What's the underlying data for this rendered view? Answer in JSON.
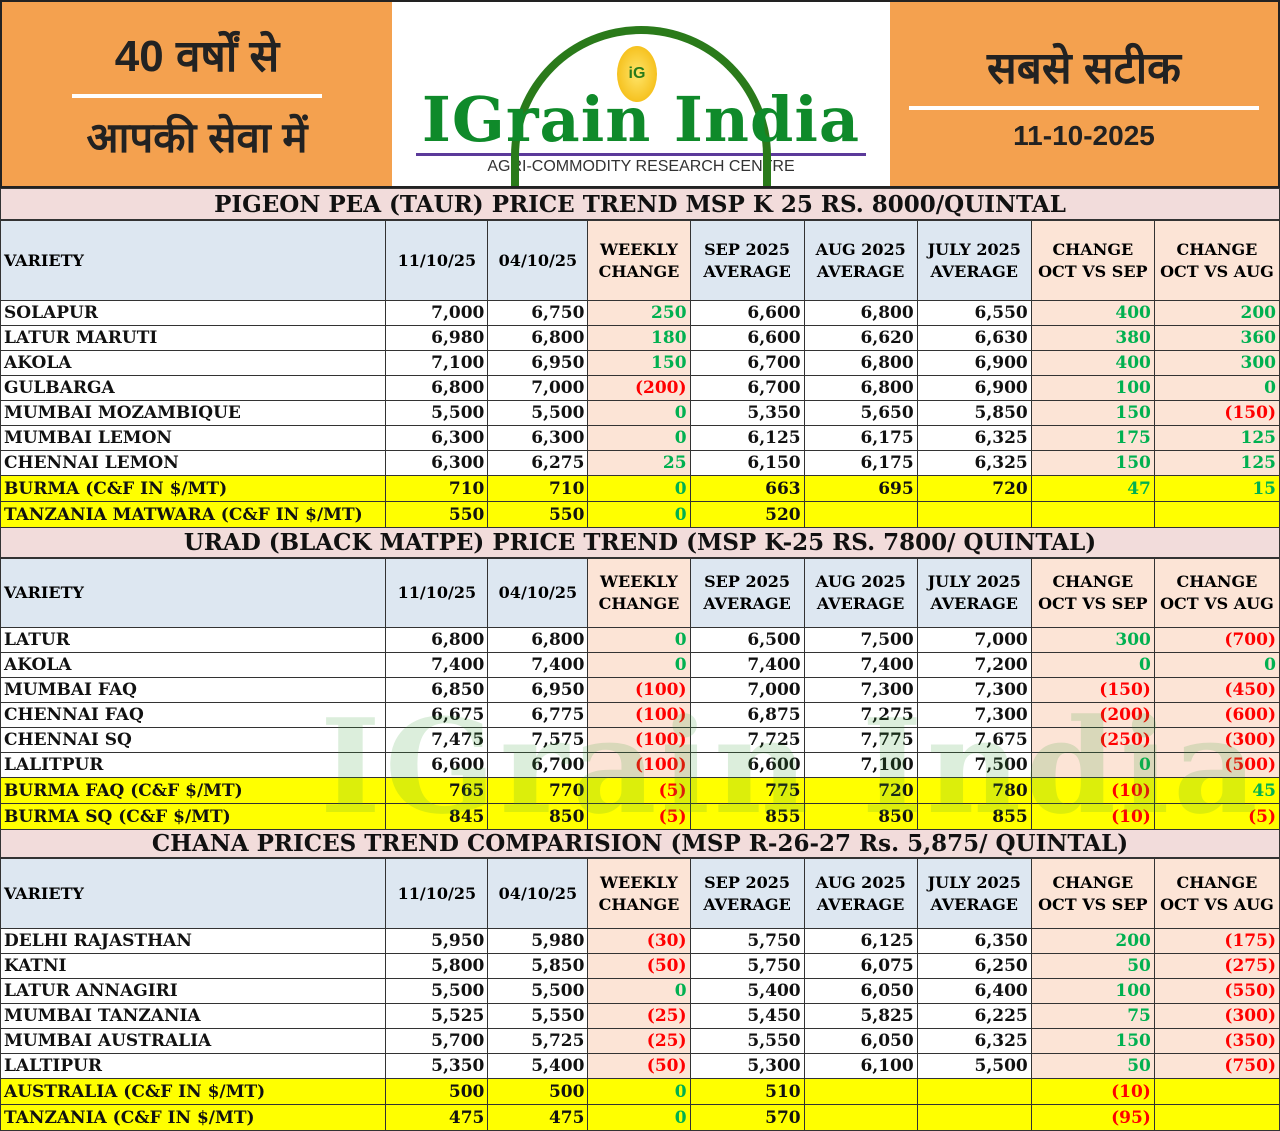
{
  "header": {
    "left_line1": "40 वर्षों से",
    "left_line2": "आपकी सेवा में",
    "brand": "IGrain India",
    "brand_badge": "iG",
    "tagline": "AGRI-COMMODITY RESEARCH CENTRE",
    "right_line1": "सबसे सटीक",
    "date": "11-10-2025"
  },
  "columns": [
    "VARIETY",
    "11/10/25",
    "04/10/25",
    "WEEKLY CHANGE",
    "SEP 2025 AVERAGE",
    "AUG 2025 AVERAGE",
    "JULY 2025 AVERAGE",
    "CHANGE OCT VS SEP",
    "CHANGE OCT VS AUG"
  ],
  "colors": {
    "positive": "#00b050",
    "negative": "#ff0000",
    "highlight": "#ffff00",
    "orange": "#f4a14f"
  },
  "sections": [
    {
      "title": "PIGEON PEA (TAUR) PRICE TREND MSP K 25 RS. 8000/QUINTAL",
      "rows": [
        {
          "cells": [
            "SOLAPUR",
            "7,000",
            "6,750",
            "250",
            "6,600",
            "6,800",
            "6,550",
            "400",
            "200"
          ]
        },
        {
          "cells": [
            "LATUR MARUTI",
            "6,980",
            "6,800",
            "180",
            "6,600",
            "6,620",
            "6,630",
            "380",
            "360"
          ]
        },
        {
          "cells": [
            "AKOLA",
            "7,100",
            "6,950",
            "150",
            "6,700",
            "6,800",
            "6,900",
            "400",
            "300"
          ]
        },
        {
          "cells": [
            "GULBARGA",
            "6,800",
            "7,000",
            "(200)",
            "6,700",
            "6,800",
            "6,900",
            "100",
            "0"
          ]
        },
        {
          "cells": [
            "MUMBAI MOZAMBIQUE",
            "5,500",
            "5,500",
            "0",
            "5,350",
            "5,650",
            "5,850",
            "150",
            "(150)"
          ]
        },
        {
          "cells": [
            "MUMBAI LEMON",
            "6,300",
            "6,300",
            "0",
            "6,125",
            "6,175",
            "6,325",
            "175",
            "125"
          ]
        },
        {
          "cells": [
            "CHENNAI LEMON",
            "6,300",
            "6,275",
            "25",
            "6,150",
            "6,175",
            "6,325",
            "150",
            "125"
          ]
        },
        {
          "highlight": true,
          "cells": [
            "BURMA (C&F IN $/MT)",
            "710",
            "710",
            "0",
            "663",
            "695",
            "720",
            "47",
            "15"
          ]
        },
        {
          "highlight": true,
          "cells": [
            "TANZANIA MATWARA (C&F IN $/MT)",
            "550",
            "550",
            "0",
            "520",
            "",
            "",
            "",
            ""
          ]
        }
      ]
    },
    {
      "title": "URAD (BLACK MATPE) PRICE TREND (MSP K-25 RS. 7800/ QUINTAL)",
      "rows": [
        {
          "cells": [
            "LATUR",
            "6,800",
            "6,800",
            "0",
            "6,500",
            "7,500",
            "7,000",
            "300",
            "(700)"
          ]
        },
        {
          "cells": [
            "AKOLA",
            "7,400",
            "7,400",
            "0",
            "7,400",
            "7,400",
            "7,200",
            "0",
            "0"
          ]
        },
        {
          "cells": [
            "MUMBAI FAQ",
            "6,850",
            "6,950",
            "(100)",
            "7,000",
            "7,300",
            "7,300",
            "(150)",
            "(450)"
          ]
        },
        {
          "cells": [
            "CHENNAI FAQ",
            "6,675",
            "6,775",
            "(100)",
            "6,875",
            "7,275",
            "7,300",
            "(200)",
            "(600)"
          ]
        },
        {
          "cells": [
            "CHENNAI SQ",
            "7,475",
            "7,575",
            "(100)",
            "7,725",
            "7,775",
            "7,675",
            "(250)",
            "(300)"
          ]
        },
        {
          "cells": [
            "LALITPUR",
            "6,600",
            "6,700",
            "(100)",
            "6,600",
            "7,100",
            "7,500",
            "0",
            "(500)"
          ]
        },
        {
          "highlight": true,
          "cells": [
            "BURMA FAQ (C&F $/MT)",
            "765",
            "770",
            "(5)",
            "775",
            "720",
            "780",
            "(10)",
            "45"
          ]
        },
        {
          "highlight": true,
          "cells": [
            "BURMA SQ (C&F $/MT)",
            "845",
            "850",
            "(5)",
            "855",
            "850",
            "855",
            "(10)",
            "(5)"
          ]
        }
      ]
    },
    {
      "title": "CHANA PRICES TREND COMPARISION (MSP R-26-27 Rs. 5,875/ QUINTAL)",
      "rows": [
        {
          "cells": [
            "DELHI RAJASTHAN",
            "5,950",
            "5,980",
            "(30)",
            "5,750",
            "6,125",
            "6,350",
            "200",
            "(175)"
          ]
        },
        {
          "cells": [
            "KATNI",
            "5,800",
            "5,850",
            "(50)",
            "5,750",
            "6,075",
            "6,250",
            "50",
            "(275)"
          ]
        },
        {
          "cells": [
            "LATUR ANNAGIRI",
            "5,500",
            "5,500",
            "0",
            "5,400",
            "6,050",
            "6,400",
            "100",
            "(550)"
          ]
        },
        {
          "cells": [
            "MUMBAI TANZANIA",
            "5,525",
            "5,550",
            "(25)",
            "5,450",
            "5,825",
            "6,225",
            "75",
            "(300)"
          ]
        },
        {
          "cells": [
            "MUMBAI AUSTRALIA",
            "5,700",
            "5,725",
            "(25)",
            "5,550",
            "6,050",
            "6,325",
            "150",
            "(350)"
          ]
        },
        {
          "cells": [
            "LALTIPUR",
            "5,350",
            "5,400",
            "(50)",
            "5,300",
            "6,100",
            "5,500",
            "50",
            "(750)"
          ]
        },
        {
          "highlight": true,
          "cells": [
            "AUSTRALIA (C&F IN $/MT)",
            "500",
            "500",
            "0",
            "510",
            "",
            "",
            "(10)",
            ""
          ]
        },
        {
          "highlight": true,
          "cells": [
            "TANZANIA (C&F IN $/MT)",
            "475",
            "475",
            "0",
            "570",
            "",
            "",
            "(95)",
            ""
          ]
        }
      ]
    }
  ]
}
